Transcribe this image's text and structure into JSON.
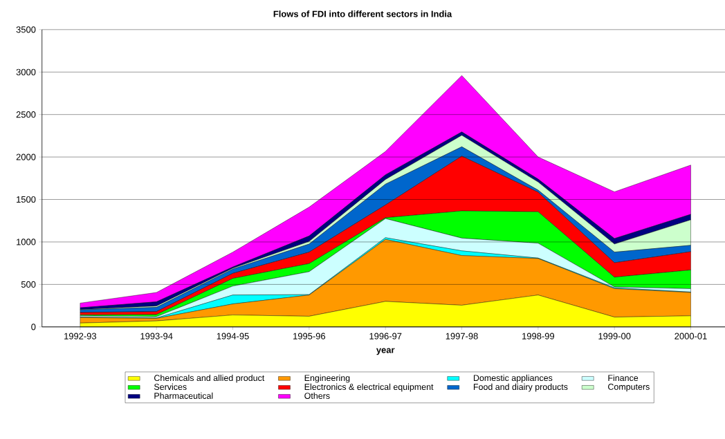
{
  "chart_data": {
    "type": "area",
    "stacked": true,
    "title": "Flows of FDI into different sectors in India",
    "xlabel": "year",
    "categories": [
      "1992-93",
      "1993-94",
      "1994-95",
      "1995-96",
      "1996-97",
      "1997-98",
      "1998-99",
      "1999-00",
      "2000-01"
    ],
    "ylim": [
      0,
      3500
    ],
    "yticks": [
      0,
      500,
      1000,
      1500,
      2000,
      2500,
      3000,
      3500
    ],
    "grid": "y",
    "legend": "bottom",
    "series": [
      {
        "name": "Chemicals and allied product",
        "color": "#ffff00",
        "values": [
          45,
          70,
          140,
          125,
          300,
          255,
          375,
          115,
          130
        ]
      },
      {
        "name": "Engineering",
        "color": "#ff9900",
        "values": [
          65,
          30,
          130,
          250,
          730,
          585,
          430,
          335,
          275
        ]
      },
      {
        "name": "Domestic appliances",
        "color": "#00ffff",
        "values": [
          5,
          5,
          105,
          5,
          20,
          55,
          5,
          10,
          5
        ]
      },
      {
        "name": "Finance",
        "color": "#ccffff",
        "values": [
          15,
          15,
          105,
          270,
          225,
          150,
          175,
          10,
          40
        ]
      },
      {
        "name": "Services",
        "color": "#00ff00",
        "values": [
          10,
          25,
          90,
          95,
          10,
          320,
          370,
          115,
          220
        ]
      },
      {
        "name": "Electronics & electrical equipment",
        "color": "#ff0000",
        "values": [
          30,
          35,
          60,
          135,
          150,
          645,
          230,
          170,
          215
        ]
      },
      {
        "name": "Food and diairy products",
        "color": "#0066cc",
        "values": [
          30,
          50,
          50,
          95,
          245,
          110,
          25,
          125,
          75
        ]
      },
      {
        "name": "Computers",
        "color": "#ccffcc",
        "values": [
          5,
          15,
          10,
          30,
          55,
          135,
          95,
          95,
          300
        ]
      },
      {
        "name": "Pharmaceutical",
        "color": "#000080",
        "values": [
          20,
          50,
          15,
          65,
          55,
          40,
          35,
          65,
          65
        ]
      },
      {
        "name": "Others",
        "color": "#ff00ff",
        "values": [
          55,
          110,
          175,
          340,
          275,
          665,
          260,
          550,
          580
        ]
      }
    ]
  }
}
